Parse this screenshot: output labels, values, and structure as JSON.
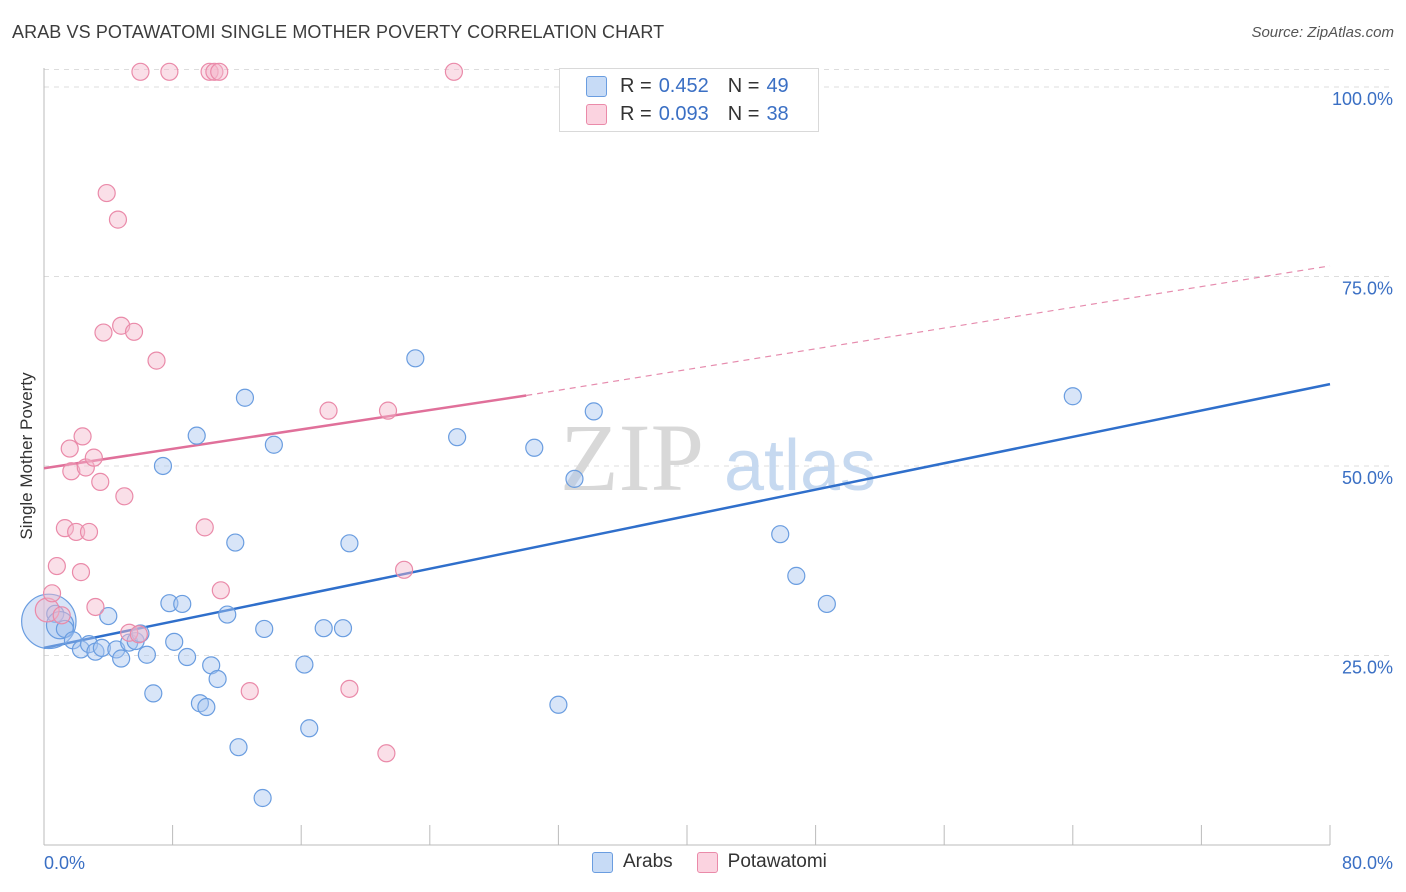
{
  "header": {
    "title": "ARAB VS POTAWATOMI SINGLE MOTHER POVERTY CORRELATION CHART",
    "source": "Source: ZipAtlas.com"
  },
  "legend": {
    "series": [
      {
        "r_label": "R =",
        "r_value": "0.452",
        "n_label": "N =",
        "n_value": "49"
      },
      {
        "r_label": "R =",
        "r_value": "0.093",
        "n_label": "N =",
        "n_value": "38"
      }
    ]
  },
  "bottom_legend": {
    "arabs": "Arabs",
    "potawatomi": "Potawatomi"
  },
  "colors": {
    "arabs_fill": "#a9c6ef",
    "arabs_stroke": "#6a9de0",
    "arabs_line": "#2f6fcb",
    "potawatomi_fill": "#f5b8cb",
    "potawatomi_stroke": "#ea8aa9",
    "potawatomi_line": "#e0709a",
    "axis_text": "#3a6fc4",
    "grid": "#dddddd"
  },
  "chart_data": {
    "type": "scatter",
    "title": "ARAB VS POTAWATOMI SINGLE MOTHER POVERTY CORRELATION CHART",
    "xlabel": "",
    "ylabel": "Single Mother Poverty",
    "xlim": [
      0,
      80
    ],
    "ylim": [
      0,
      102.5
    ],
    "x_tick_labels": [
      "0.0%",
      "80.0%"
    ],
    "y_ticks": [
      25,
      50,
      75,
      100
    ],
    "y_tick_labels": [
      "25.0%",
      "50.0%",
      "75.0%",
      "100.0%"
    ],
    "watermark": "ZIPatlas",
    "series": [
      {
        "name": "Arabs",
        "points": [
          {
            "x": 0.3,
            "y": 29.5,
            "s": 3.2
          },
          {
            "x": 0.7,
            "y": 30.5,
            "s": 1
          },
          {
            "x": 1.0,
            "y": 29.0,
            "s": 1.6
          },
          {
            "x": 1.3,
            "y": 28.5,
            "s": 1
          },
          {
            "x": 1.8,
            "y": 27.0,
            "s": 1
          },
          {
            "x": 2.3,
            "y": 25.8,
            "s": 1
          },
          {
            "x": 2.8,
            "y": 26.5,
            "s": 1
          },
          {
            "x": 3.2,
            "y": 25.5,
            "s": 1
          },
          {
            "x": 3.6,
            "y": 26.0,
            "s": 1
          },
          {
            "x": 4.0,
            "y": 30.2,
            "s": 1
          },
          {
            "x": 4.5,
            "y": 25.8,
            "s": 1
          },
          {
            "x": 4.8,
            "y": 24.6,
            "s": 1
          },
          {
            "x": 5.3,
            "y": 26.7,
            "s": 1
          },
          {
            "x": 5.7,
            "y": 26.9,
            "s": 1
          },
          {
            "x": 6.0,
            "y": 27.9,
            "s": 1
          },
          {
            "x": 6.4,
            "y": 25.1,
            "s": 1
          },
          {
            "x": 6.8,
            "y": 20.0,
            "s": 1
          },
          {
            "x": 7.4,
            "y": 50.0,
            "s": 1
          },
          {
            "x": 7.8,
            "y": 31.9,
            "s": 1
          },
          {
            "x": 8.1,
            "y": 26.8,
            "s": 1
          },
          {
            "x": 8.6,
            "y": 31.8,
            "s": 1
          },
          {
            "x": 8.9,
            "y": 24.8,
            "s": 1
          },
          {
            "x": 9.5,
            "y": 54.0,
            "s": 1
          },
          {
            "x": 9.7,
            "y": 18.7,
            "s": 1
          },
          {
            "x": 10.1,
            "y": 18.2,
            "s": 1
          },
          {
            "x": 10.4,
            "y": 23.7,
            "s": 1
          },
          {
            "x": 10.8,
            "y": 21.9,
            "s": 1
          },
          {
            "x": 11.4,
            "y": 30.4,
            "s": 1
          },
          {
            "x": 11.9,
            "y": 39.9,
            "s": 1
          },
          {
            "x": 12.1,
            "y": 12.9,
            "s": 1
          },
          {
            "x": 12.5,
            "y": 59.0,
            "s": 1
          },
          {
            "x": 13.6,
            "y": 6.2,
            "s": 1
          },
          {
            "x": 13.7,
            "y": 28.5,
            "s": 1
          },
          {
            "x": 14.3,
            "y": 52.8,
            "s": 1
          },
          {
            "x": 16.2,
            "y": 23.8,
            "s": 1
          },
          {
            "x": 16.5,
            "y": 15.4,
            "s": 1
          },
          {
            "x": 17.4,
            "y": 28.6,
            "s": 1
          },
          {
            "x": 18.6,
            "y": 28.6,
            "s": 1
          },
          {
            "x": 19.0,
            "y": 39.8,
            "s": 1
          },
          {
            "x": 23.1,
            "y": 64.2,
            "s": 1
          },
          {
            "x": 25.7,
            "y": 53.8,
            "s": 1
          },
          {
            "x": 30.5,
            "y": 52.4,
            "s": 1
          },
          {
            "x": 32.0,
            "y": 18.5,
            "s": 1
          },
          {
            "x": 33.0,
            "y": 48.3,
            "s": 1
          },
          {
            "x": 34.2,
            "y": 57.2,
            "s": 1
          },
          {
            "x": 45.8,
            "y": 41.0,
            "s": 1
          },
          {
            "x": 46.8,
            "y": 35.5,
            "s": 1
          },
          {
            "x": 48.7,
            "y": 31.8,
            "s": 1
          },
          {
            "x": 64.0,
            "y": 59.2,
            "s": 1
          }
        ]
      },
      {
        "name": "Potawatomi",
        "points": [
          {
            "x": 0.2,
            "y": 31.0,
            "s": 1.4
          },
          {
            "x": 0.5,
            "y": 33.2,
            "s": 1
          },
          {
            "x": 0.8,
            "y": 36.8,
            "s": 1
          },
          {
            "x": 1.1,
            "y": 30.3,
            "s": 1
          },
          {
            "x": 1.3,
            "y": 41.8,
            "s": 1
          },
          {
            "x": 1.6,
            "y": 52.3,
            "s": 1
          },
          {
            "x": 1.7,
            "y": 49.3,
            "s": 1
          },
          {
            "x": 2.0,
            "y": 41.3,
            "s": 1
          },
          {
            "x": 2.3,
            "y": 36.0,
            "s": 1
          },
          {
            "x": 2.4,
            "y": 53.9,
            "s": 1
          },
          {
            "x": 2.6,
            "y": 49.8,
            "s": 1
          },
          {
            "x": 2.8,
            "y": 41.3,
            "s": 1
          },
          {
            "x": 3.1,
            "y": 51.1,
            "s": 1
          },
          {
            "x": 3.2,
            "y": 31.4,
            "s": 1
          },
          {
            "x": 3.5,
            "y": 47.9,
            "s": 1
          },
          {
            "x": 3.7,
            "y": 67.6,
            "s": 1
          },
          {
            "x": 3.9,
            "y": 86.0,
            "s": 1
          },
          {
            "x": 4.6,
            "y": 82.5,
            "s": 1
          },
          {
            "x": 4.8,
            "y": 68.5,
            "s": 1
          },
          {
            "x": 5.0,
            "y": 46.0,
            "s": 1
          },
          {
            "x": 5.3,
            "y": 28.0,
            "s": 1
          },
          {
            "x": 5.6,
            "y": 67.7,
            "s": 1
          },
          {
            "x": 5.9,
            "y": 27.8,
            "s": 1
          },
          {
            "x": 6.0,
            "y": 102.0,
            "s": 1
          },
          {
            "x": 7.0,
            "y": 63.9,
            "s": 1
          },
          {
            "x": 7.8,
            "y": 102.0,
            "s": 1
          },
          {
            "x": 10.0,
            "y": 41.9,
            "s": 1
          },
          {
            "x": 10.3,
            "y": 102.0,
            "s": 1
          },
          {
            "x": 10.6,
            "y": 102.0,
            "s": 1
          },
          {
            "x": 10.9,
            "y": 102.0,
            "s": 1
          },
          {
            "x": 11.0,
            "y": 33.6,
            "s": 1
          },
          {
            "x": 12.8,
            "y": 20.3,
            "s": 1
          },
          {
            "x": 17.7,
            "y": 57.3,
            "s": 1
          },
          {
            "x": 19.0,
            "y": 20.6,
            "s": 1
          },
          {
            "x": 21.4,
            "y": 57.3,
            "s": 1
          },
          {
            "x": 21.3,
            "y": 12.1,
            "s": 1
          },
          {
            "x": 22.4,
            "y": 36.3,
            "s": 1
          },
          {
            "x": 25.5,
            "y": 102.0,
            "s": 1
          }
        ]
      }
    ],
    "trendlines": [
      {
        "series": "Arabs",
        "x": [
          0,
          80
        ],
        "y": [
          26.0,
          60.8
        ],
        "style": "solid"
      },
      {
        "series": "Potawatomi",
        "solid": {
          "x": [
            0,
            30
          ],
          "y": [
            49.7,
            59.3
          ]
        },
        "dashed": {
          "x": [
            30,
            80
          ],
          "y": [
            59.3,
            76.4
          ]
        }
      }
    ]
  }
}
